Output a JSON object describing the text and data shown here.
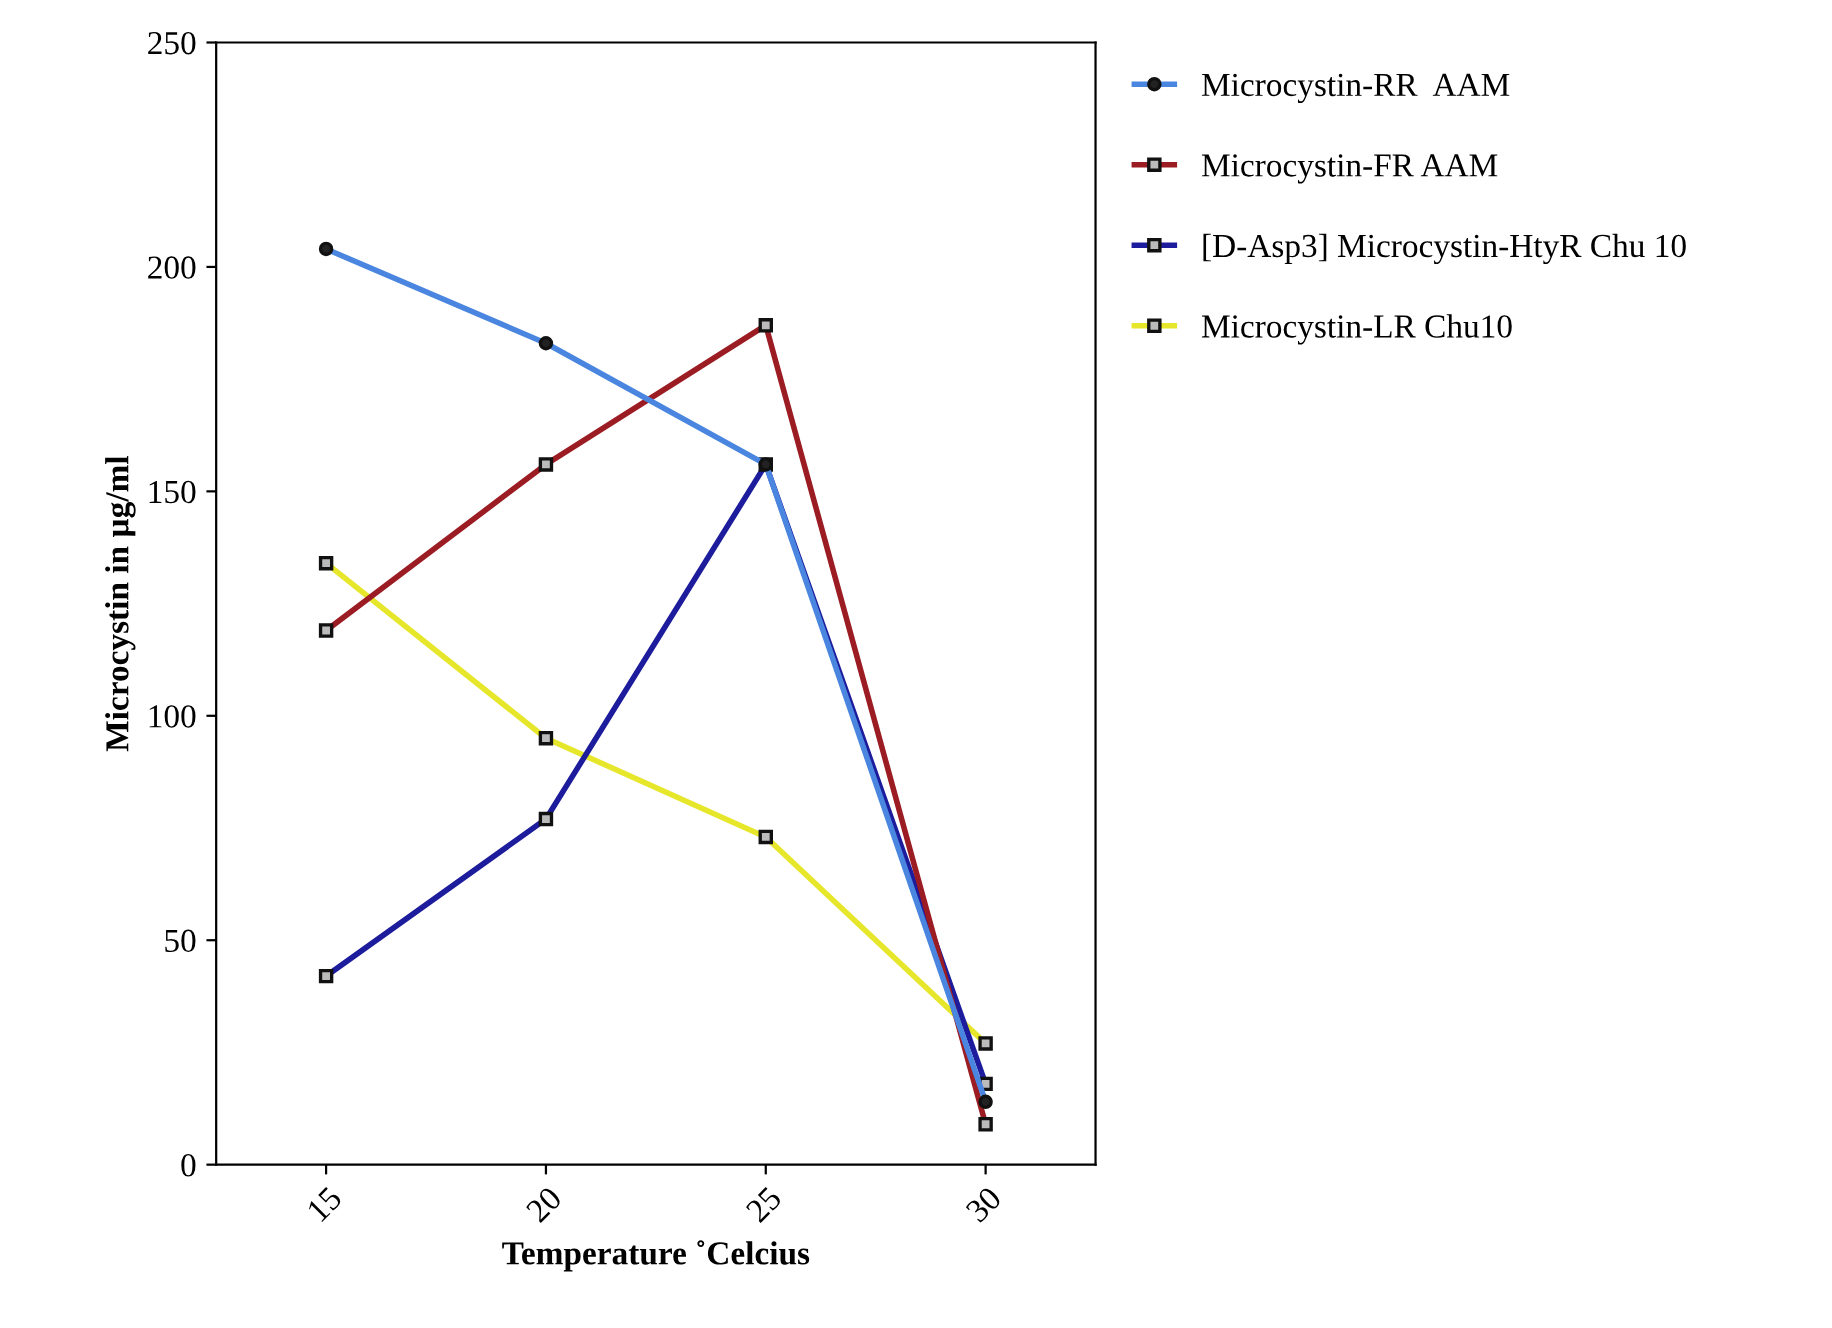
{
  "chart_data": {
    "type": "line",
    "xlabel": "Temperature ˚Celcius",
    "ylabel": "Microcystin in µg/ml",
    "categories": [
      "15",
      "20",
      "25",
      "30"
    ],
    "series": [
      {
        "name": "Microcystin-RR  AAM",
        "color": "#4a86e0",
        "marker": "circle",
        "values": [
          204,
          183,
          156,
          14
        ]
      },
      {
        "name": "Microcystin-FR AAM",
        "color": "#9b1c22",
        "marker": "square",
        "values": [
          119,
          156,
          187,
          9
        ]
      },
      {
        "name": "[D-Asp3] Microcystin-HtyR Chu 10",
        "color": "#1c1c9c",
        "marker": "square",
        "values": [
          42,
          77,
          156,
          18
        ]
      },
      {
        "name": "Microcystin-LR Chu10",
        "color": "#e6e62a",
        "marker": "square",
        "values": [
          134,
          95,
          73,
          27
        ]
      }
    ],
    "ylim": [
      0,
      250
    ],
    "yticks": [
      0,
      50,
      100,
      150,
      200,
      250
    ],
    "grid": false,
    "legend": "top right",
    "line_style": "solid"
  }
}
